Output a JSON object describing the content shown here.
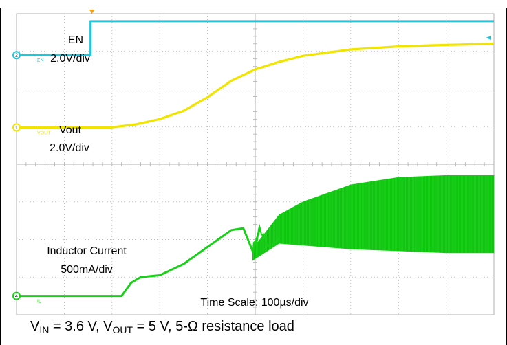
{
  "colors": {
    "background": "#ffffff",
    "grid": "#b0b0b0",
    "en_trace": "#22c6d8",
    "vout_trace": "#f0e400",
    "il_trace": "#18d018",
    "trigger_marker": "#f0a020"
  },
  "labels": {
    "en_name": "EN",
    "en_scale": "2.0V/div",
    "vout_name": "Vout",
    "vout_scale": "2.0V/div",
    "il_name": "Inductor Current",
    "il_scale": "500mA/div",
    "time_scale": "Time Scale: 100µs/div"
  },
  "channel_markers": {
    "en": "2",
    "vout": "1",
    "il": "4",
    "en_tag": "EN",
    "vout_tag": "VOUT",
    "il_tag": "IL"
  },
  "caption": {
    "v": "V",
    "in_sub": "IN",
    "part1": " = 3.6 V, V",
    "out_sub": "OUT",
    "part2": " = 5 V, 5-Ω resistance load"
  },
  "chart_data": {
    "type": "line",
    "x_divisions": 10,
    "y_divisions": 8,
    "x_unit": "div (100µs/div)",
    "grid": true,
    "series": [
      {
        "name": "EN",
        "x": [
          0,
          1.55,
          1.55,
          10
        ],
        "y": [
          6.9,
          6.9,
          7.8,
          7.8
        ]
      },
      {
        "name": "Vout",
        "x": [
          0,
          2.0,
          2.5,
          3.0,
          3.5,
          4.0,
          4.5,
          5.0,
          5.5,
          6.0,
          7.0,
          8.0,
          9.0,
          10.0
        ],
        "y": [
          4.98,
          4.98,
          5.06,
          5.2,
          5.42,
          5.78,
          6.22,
          6.52,
          6.72,
          6.88,
          7.05,
          7.13,
          7.17,
          7.2
        ],
        "band": 0.06
      },
      {
        "name": "Inductor Current",
        "x": [
          0,
          2.2,
          2.4,
          2.6,
          3.0,
          3.5,
          4.0,
          4.5,
          4.75,
          4.95,
          5.1,
          5.3,
          5.5,
          6.0,
          7.0,
          8.0,
          9.0,
          10.0
        ],
        "y": [
          0.5,
          0.5,
          0.85,
          1.0,
          1.05,
          1.35,
          1.8,
          2.25,
          2.3,
          1.68,
          2.3,
          1.75,
          2.04,
          2.08,
          2.14,
          2.17,
          2.19,
          2.2
        ],
        "ripple_start": 4.95,
        "ripple_upper": [
          {
            "x": 4.95,
            "y": 1.75
          },
          {
            "x": 5.5,
            "y": 2.65
          },
          {
            "x": 6.0,
            "y": 3.0
          },
          {
            "x": 7.0,
            "y": 3.45
          },
          {
            "x": 8.0,
            "y": 3.65
          },
          {
            "x": 9.0,
            "y": 3.7
          },
          {
            "x": 10.0,
            "y": 3.7
          }
        ],
        "ripple_lower": [
          {
            "x": 4.95,
            "y": 1.45
          },
          {
            "x": 5.5,
            "y": 1.9
          },
          {
            "x": 6.0,
            "y": 1.85
          },
          {
            "x": 7.0,
            "y": 1.75
          },
          {
            "x": 8.0,
            "y": 1.7
          },
          {
            "x": 9.0,
            "y": 1.65
          },
          {
            "x": 10.0,
            "y": 1.65
          }
        ]
      }
    ]
  }
}
